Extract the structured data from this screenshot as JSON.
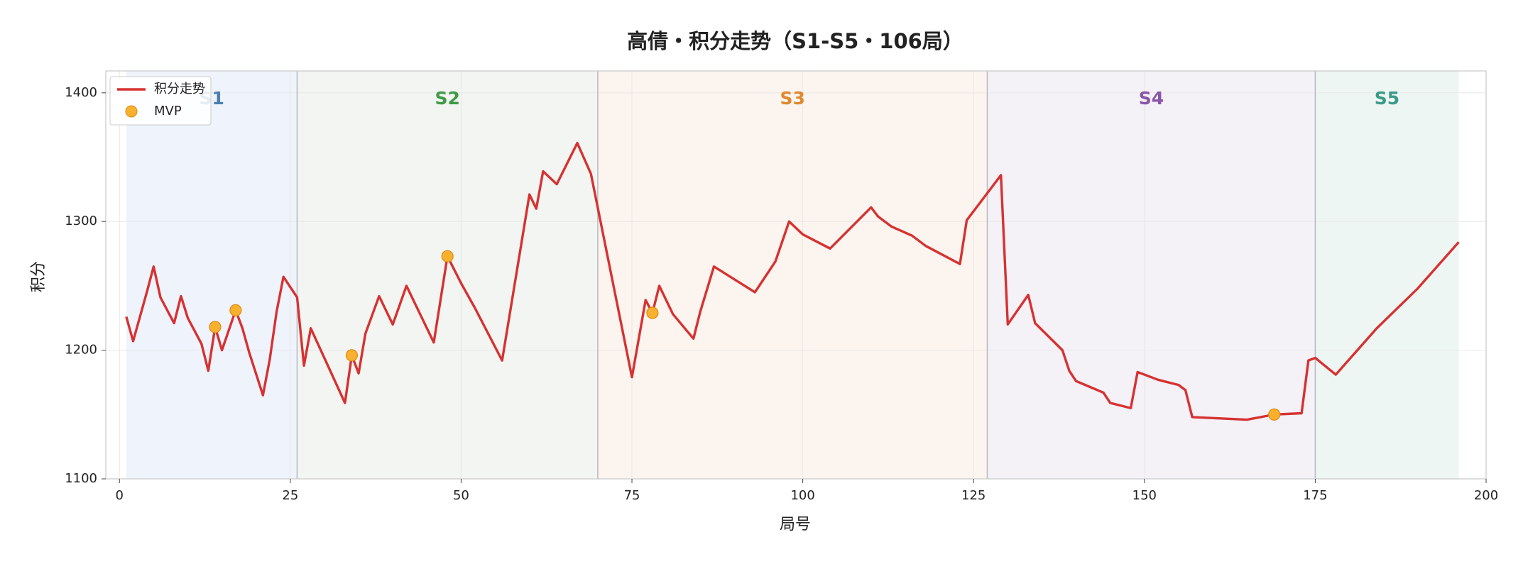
{
  "chart_data": {
    "type": "line",
    "title": "高倩・积分走势（S1-S5・106局）",
    "xlabel": "局号",
    "ylabel": "积分",
    "xlim": [
      -2,
      200
    ],
    "ylim": [
      1100,
      1417
    ],
    "xticks": [
      0,
      25,
      50,
      75,
      100,
      125,
      150,
      175,
      200
    ],
    "yticks": [
      1100,
      1200,
      1300,
      1400
    ],
    "grid": true,
    "legend": "upper left",
    "regions": [
      {
        "label": "S1",
        "start": 1,
        "end": 26,
        "color": "#4a7fb0",
        "fill": "#eef3fc"
      },
      {
        "label": "S2",
        "start": 26,
        "end": 70,
        "color": "#3f9a45",
        "fill": "#f2f5f1"
      },
      {
        "label": "S3",
        "start": 70,
        "end": 127,
        "color": "#e0882c",
        "fill": "#fcf4ee"
      },
      {
        "label": "S4",
        "start": 127,
        "end": 175,
        "color": "#8a55a8",
        "fill": "#f4f1f7"
      },
      {
        "label": "S5",
        "start": 175,
        "end": 196,
        "color": "#3a9a88",
        "fill": "#eef6f3"
      }
    ],
    "series": [
      {
        "name": "积分走势",
        "color": "#d63232",
        "type": "line",
        "x": [
          1,
          2,
          4,
          5,
          6,
          8,
          9,
          10,
          12,
          13,
          14,
          15,
          17,
          18,
          19,
          21,
          22,
          23,
          24,
          26,
          27,
          28,
          33,
          34,
          35,
          36,
          38,
          40,
          42,
          44,
          46,
          48,
          50,
          52,
          56,
          60,
          61,
          62,
          64,
          67,
          69,
          75,
          77,
          78,
          79,
          81,
          84,
          85,
          87,
          93,
          96,
          98,
          100,
          104,
          110,
          111,
          113,
          116,
          118,
          123,
          124,
          129,
          130,
          133,
          134,
          138,
          139,
          140,
          144,
          145,
          148,
          149,
          152,
          155,
          156,
          157,
          165,
          169,
          173,
          174,
          175,
          178,
          184,
          190,
          196
        ],
        "values": [
          1226,
          1207,
          1245,
          1265,
          1241,
          1221,
          1242,
          1225,
          1205,
          1184,
          1218,
          1200,
          1231,
          1217,
          1198,
          1165,
          1193,
          1230,
          1257,
          1241,
          1188,
          1217,
          1159,
          1196,
          1182,
          1213,
          1242,
          1220,
          1250,
          1228,
          1206,
          1273,
          1252,
          1233,
          1192,
          1321,
          1310,
          1339,
          1329,
          1361,
          1337,
          1179,
          1239,
          1229,
          1250,
          1228,
          1209,
          1230,
          1265,
          1245,
          1269,
          1300,
          1290,
          1279,
          1311,
          1304,
          1296,
          1289,
          1281,
          1267,
          1301,
          1336,
          1220,
          1243,
          1221,
          1200,
          1184,
          1176,
          1167,
          1159,
          1155,
          1183,
          1177,
          1173,
          1169,
          1148,
          1146,
          1150,
          1151,
          1192,
          1194,
          1181,
          1217,
          1248,
          1284
        ]
      },
      {
        "name": "MVP",
        "color": "#f7b12e",
        "type": "scatter",
        "x": [
          14,
          17,
          34,
          48,
          78,
          169
        ],
        "values": [
          1218,
          1231,
          1196,
          1273,
          1229,
          1150
        ]
      }
    ]
  }
}
